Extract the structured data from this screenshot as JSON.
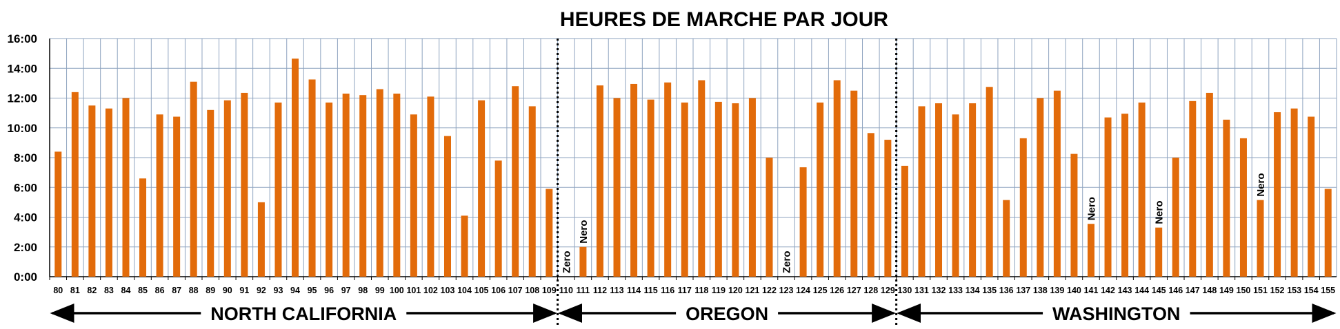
{
  "chart_data": {
    "type": "bar",
    "title": "HEURES DE MARCHE PAR JOUR",
    "xlabel": "",
    "ylabel": "",
    "ylim": [
      0,
      16
    ],
    "yticks": [
      "0:00",
      "2:00",
      "4:00",
      "6:00",
      "8:00",
      "10:00",
      "12:00",
      "14:00",
      "16:00"
    ],
    "grid": true,
    "bar_color": "#E26B0A",
    "categories": [
      "80",
      "81",
      "82",
      "83",
      "84",
      "85",
      "86",
      "87",
      "88",
      "89",
      "90",
      "91",
      "92",
      "93",
      "94",
      "95",
      "96",
      "97",
      "98",
      "99",
      "100",
      "101",
      "102",
      "103",
      "104",
      "105",
      "106",
      "107",
      "108",
      "109",
      "110",
      "111",
      "112",
      "113",
      "114",
      "115",
      "116",
      "117",
      "118",
      "119",
      "120",
      "121",
      "122",
      "123",
      "124",
      "125",
      "126",
      "127",
      "128",
      "129",
      "130",
      "131",
      "132",
      "133",
      "134",
      "135",
      "136",
      "137",
      "138",
      "139",
      "140",
      "141",
      "142",
      "143",
      "144",
      "145",
      "146",
      "147",
      "148",
      "149",
      "150",
      "151",
      "152",
      "153",
      "154",
      "155"
    ],
    "values": [
      8.4,
      12.4,
      11.5,
      11.3,
      12.0,
      6.6,
      10.9,
      10.75,
      13.1,
      11.2,
      11.85,
      12.35,
      5.0,
      11.7,
      14.65,
      13.25,
      11.7,
      12.3,
      12.2,
      12.6,
      12.3,
      10.9,
      12.1,
      9.45,
      4.1,
      11.85,
      7.8,
      12.8,
      11.45,
      5.9,
      0,
      2.0,
      12.85,
      12.0,
      12.95,
      11.9,
      13.05,
      11.7,
      13.2,
      11.75,
      11.65,
      12.0,
      8.0,
      0,
      7.35,
      11.7,
      13.2,
      12.5,
      9.65,
      9.2,
      7.45,
      11.45,
      11.65,
      10.9,
      11.65,
      12.75,
      5.15,
      9.3,
      12.0,
      12.5,
      8.25,
      3.55,
      10.7,
      10.95,
      11.7,
      3.3,
      8.0,
      11.8,
      12.35,
      10.55,
      9.3,
      5.15,
      11.05,
      11.3,
      10.75,
      5.9
    ],
    "annotations": [
      {
        "category": "110",
        "text": "Zero"
      },
      {
        "category": "111",
        "text": "Nero"
      },
      {
        "category": "123",
        "text": "Zero"
      },
      {
        "category": "141",
        "text": "Nero"
      },
      {
        "category": "145",
        "text": "Nero"
      },
      {
        "category": "151",
        "text": "Nero"
      }
    ],
    "dividers_after": [
      "109",
      "129"
    ],
    "regions": [
      {
        "label": "NORTH CALIFORNIA",
        "from": "80",
        "to": "109"
      },
      {
        "label": "OREGON",
        "from": "110",
        "to": "129"
      },
      {
        "label": "WASHINGTON",
        "from": "130",
        "to": "155"
      }
    ]
  },
  "colors": {
    "bar": "#E26B0A",
    "grid": "#8EA3BF",
    "axis": "#000000",
    "text": "#000000"
  }
}
